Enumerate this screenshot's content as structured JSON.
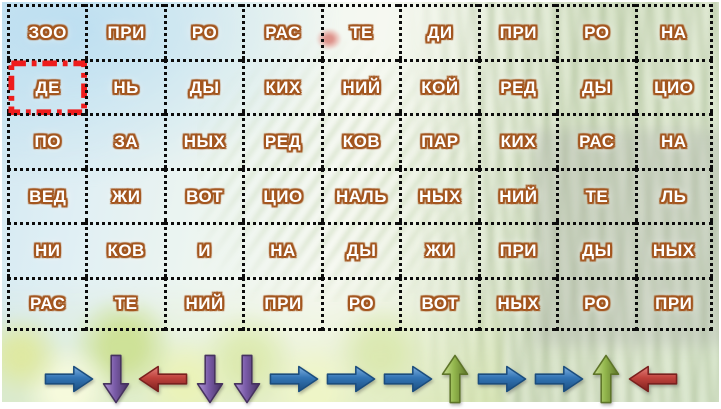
{
  "slide": {
    "grid": {
      "rows": [
        [
          "ЗОО",
          "ПРИ",
          "РО",
          "РАС",
          "ТЕ",
          "ДИ",
          "ПРИ",
          "РО",
          "НА"
        ],
        [
          "ДЕ",
          "НЬ",
          "ДЫ",
          "КИХ",
          "НИЙ",
          "КОЙ",
          "РЕД",
          "ДЫ",
          "ЦИО"
        ],
        [
          "ПО",
          "ЗА",
          "НЫХ",
          "РЕД",
          "КОВ",
          "ПАР",
          "КИХ",
          "РАС",
          "НА"
        ],
        [
          "ВЕД",
          "ЖИ",
          "ВОТ",
          "ЦИО",
          "НАЛЬ",
          "НЫХ",
          "НИЙ",
          "ТЕ",
          "ЛЬ"
        ],
        [
          "НИ",
          "КОВ",
          "И",
          "НА",
          "ДЫ",
          "ЖИ",
          "ПРИ",
          "ДЫ",
          "НЫХ"
        ],
        [
          "РАС",
          "ТЕ",
          "НИЙ",
          "ПРИ",
          "РО",
          "ВОТ",
          "НЫХ",
          "РО",
          "ПРИ"
        ]
      ],
      "highlight": {
        "row": 1,
        "col": 0,
        "syllable": "ДЕ"
      }
    },
    "arrows": [
      {
        "dir": "right",
        "color": "blue"
      },
      {
        "dir": "down",
        "color": "purple"
      },
      {
        "dir": "left",
        "color": "red"
      },
      {
        "dir": "down",
        "color": "purple"
      },
      {
        "dir": "down",
        "color": "purple"
      },
      {
        "dir": "right",
        "color": "blue"
      },
      {
        "dir": "right",
        "color": "blue"
      },
      {
        "dir": "right",
        "color": "blue"
      },
      {
        "dir": "up",
        "color": "green"
      },
      {
        "dir": "right",
        "color": "blue"
      },
      {
        "dir": "right",
        "color": "blue"
      },
      {
        "dir": "up",
        "color": "green"
      },
      {
        "dir": "left",
        "color": "red"
      }
    ],
    "colors": {
      "blue": {
        "light": "#7fb0e0",
        "main": "#3274b4",
        "dark": "#1b4d7e"
      },
      "purple": {
        "light": "#b196d6",
        "main": "#7a5ba8",
        "dark": "#46325f"
      },
      "red": {
        "light": "#e2827d",
        "main": "#c0423c",
        "dark": "#7a201e"
      },
      "green": {
        "light": "#cade92",
        "main": "#94b84e",
        "dark": "#5d7428"
      },
      "syllable_text": "#ffffff",
      "syllable_outline": "#a3561f",
      "grid_border": "#0c0c0c",
      "highlight_border": "#ee1c1c"
    }
  }
}
